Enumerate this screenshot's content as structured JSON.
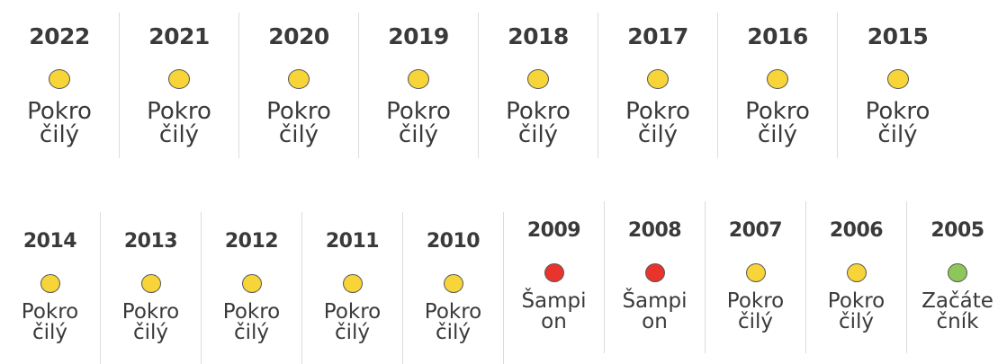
{
  "rows": [
    {
      "items": [
        {
          "year": "2022",
          "color": "#f7d438",
          "label": [
            "Pokro",
            "čilý"
          ]
        },
        {
          "year": "2021",
          "color": "#f7d438",
          "label": [
            "Pokro",
            "čilý"
          ]
        },
        {
          "year": "2020",
          "color": "#f7d438",
          "label": [
            "Pokro",
            "čilý"
          ]
        },
        {
          "year": "2019",
          "color": "#f7d438",
          "label": [
            "Pokro",
            "čilý"
          ]
        },
        {
          "year": "2018",
          "color": "#f7d438",
          "label": [
            "Pokro",
            "čilý"
          ]
        },
        {
          "year": "2017",
          "color": "#f7d438",
          "label": [
            "Pokro",
            "čilý"
          ]
        },
        {
          "year": "2016",
          "color": "#f7d438",
          "label": [
            "Pokro",
            "čilý"
          ]
        },
        {
          "year": "2015",
          "color": "#f7d438",
          "label": [
            "Pokro",
            "čilý"
          ]
        }
      ]
    },
    {
      "items": [
        {
          "year": "2014",
          "color": "#f7d438",
          "label": [
            "Pokro",
            "čilý"
          ]
        },
        {
          "year": "2013",
          "color": "#f7d438",
          "label": [
            "Pokro",
            "čilý"
          ]
        },
        {
          "year": "2012",
          "color": "#f7d438",
          "label": [
            "Pokro",
            "čilý"
          ]
        },
        {
          "year": "2011",
          "color": "#f7d438",
          "label": [
            "Pokro",
            "čilý"
          ]
        },
        {
          "year": "2010",
          "color": "#f7d438",
          "label": [
            "Pokro",
            "čilý"
          ]
        },
        {
          "year": "2009",
          "color": "#e8342c",
          "label": [
            "Šampi",
            "on"
          ]
        },
        {
          "year": "2008",
          "color": "#e8342c",
          "label": [
            "Šampi",
            "on"
          ]
        },
        {
          "year": "2007",
          "color": "#f7d438",
          "label": [
            "Pokro",
            "čilý"
          ]
        },
        {
          "year": "2006",
          "color": "#f7d438",
          "label": [
            "Pokro",
            "čilý"
          ]
        },
        {
          "year": "2005",
          "color": "#8dc75c",
          "label": [
            "Začáte",
            "čník"
          ]
        }
      ]
    }
  ]
}
